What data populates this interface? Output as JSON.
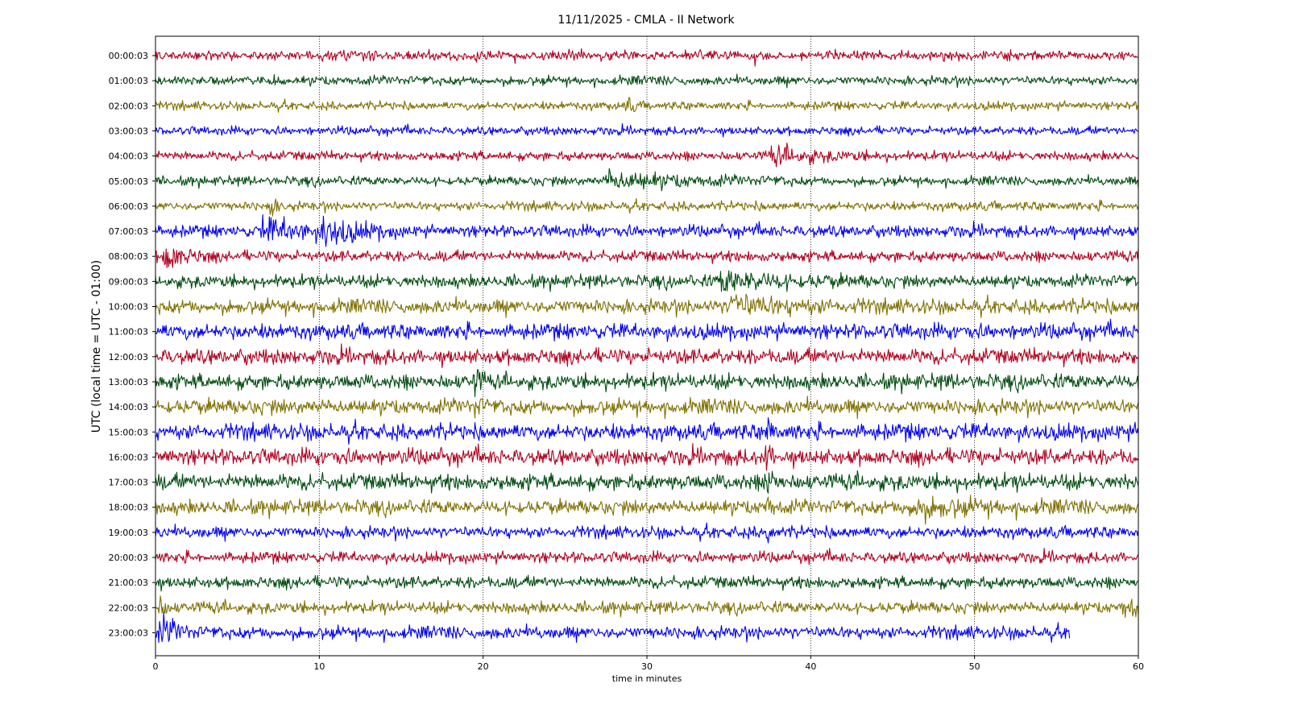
{
  "chart_data": {
    "type": "line",
    "title": "11/11/2025 - CMLA - II Network",
    "xlabel": "time in minutes",
    "ylabel": "UTC (local time = UTC - 01:00)",
    "xlim": [
      0,
      60
    ],
    "x_ticks": [
      0,
      10,
      20,
      30,
      40,
      50,
      60
    ],
    "grid": "vertical dotted",
    "row_colors": [
      "#b0001e",
      "#004c0f",
      "#7f7000",
      "#0000f0"
    ],
    "series": [
      {
        "label": "00:00:03",
        "x_end": 60,
        "amp": 0.55,
        "events": []
      },
      {
        "label": "01:00:03",
        "x_end": 60,
        "amp": 0.55,
        "events": []
      },
      {
        "label": "02:00:03",
        "x_end": 60,
        "amp": 0.5,
        "events": [
          {
            "x": 28.8,
            "amp": 0.9,
            "dur": 0.3
          }
        ]
      },
      {
        "label": "03:00:03",
        "x_end": 60,
        "amp": 0.5,
        "events": []
      },
      {
        "label": "04:00:03",
        "x_end": 60,
        "amp": 0.55,
        "events": [
          {
            "x": 37.5,
            "amp": 0.9,
            "dur": 2.5
          }
        ]
      },
      {
        "label": "05:00:03",
        "x_end": 60,
        "amp": 0.55,
        "events": [
          {
            "x": 27.5,
            "amp": 1.0,
            "dur": 4
          }
        ]
      },
      {
        "label": "06:00:03",
        "x_end": 60,
        "amp": 0.55,
        "events": [
          {
            "x": 6.8,
            "amp": 1.4,
            "dur": 0.4
          }
        ]
      },
      {
        "label": "07:00:03",
        "x_end": 60,
        "amp": 0.7,
        "events": [
          {
            "x": 6.5,
            "amp": 1.3,
            "dur": 3
          },
          {
            "x": 10.2,
            "amp": 1.4,
            "dur": 1.5
          }
        ]
      },
      {
        "label": "08:00:03",
        "x_end": 60,
        "amp": 0.65,
        "events": [
          {
            "x": 0.5,
            "amp": 1.8,
            "dur": 1.0
          }
        ]
      },
      {
        "label": "09:00:03",
        "x_end": 60,
        "amp": 0.75,
        "events": [
          {
            "x": 34.5,
            "amp": 1.2,
            "dur": 3
          }
        ]
      },
      {
        "label": "10:00:03",
        "x_end": 60,
        "amp": 0.85,
        "events": [
          {
            "x": 35,
            "amp": 1.2,
            "dur": 3
          }
        ]
      },
      {
        "label": "11:00:03",
        "x_end": 60,
        "amp": 0.9,
        "events": []
      },
      {
        "label": "12:00:03",
        "x_end": 60,
        "amp": 0.9,
        "events": []
      },
      {
        "label": "13:00:03",
        "x_end": 60,
        "amp": 0.9,
        "events": [
          {
            "x": 19.5,
            "amp": 1.6,
            "dur": 0.3
          }
        ]
      },
      {
        "label": "14:00:03",
        "x_end": 60,
        "amp": 0.9,
        "events": [
          {
            "x": 19.5,
            "amp": 1.0,
            "dur": 0.3
          }
        ]
      },
      {
        "label": "15:00:03",
        "x_end": 60,
        "amp": 0.95,
        "events": [
          {
            "x": 37.3,
            "amp": 1.6,
            "dur": 0.3
          }
        ]
      },
      {
        "label": "16:00:03",
        "x_end": 60,
        "amp": 0.95,
        "events": [
          {
            "x": 37.2,
            "amp": 1.7,
            "dur": 0.3
          }
        ]
      },
      {
        "label": "17:00:03",
        "x_end": 60,
        "amp": 0.95,
        "events": [
          {
            "x": 37.3,
            "amp": 1.8,
            "dur": 0.4
          }
        ]
      },
      {
        "label": "18:00:03",
        "x_end": 60,
        "amp": 0.85,
        "events": [
          {
            "x": 37.3,
            "amp": 1.3,
            "dur": 0.3
          },
          {
            "x": 46,
            "amp": 1.1,
            "dur": 3
          }
        ]
      },
      {
        "label": "19:00:03",
        "x_end": 60,
        "amp": 0.7,
        "events": [
          {
            "x": 37.3,
            "amp": 1.0,
            "dur": 0.3
          }
        ]
      },
      {
        "label": "20:00:03",
        "x_end": 60,
        "amp": 0.65,
        "events": []
      },
      {
        "label": "21:00:03",
        "x_end": 60,
        "amp": 0.7,
        "events": []
      },
      {
        "label": "22:00:03",
        "x_end": 60,
        "amp": 0.7,
        "events": [
          {
            "x": 0.3,
            "amp": 1.1,
            "dur": 0.3
          },
          {
            "x": 59,
            "amp": 1.0,
            "dur": 2
          }
        ]
      },
      {
        "label": "23:00:03",
        "x_end": 55.8,
        "amp": 0.75,
        "events": [
          {
            "x": 0.3,
            "amp": 1.9,
            "dur": 0.8
          }
        ]
      }
    ]
  }
}
